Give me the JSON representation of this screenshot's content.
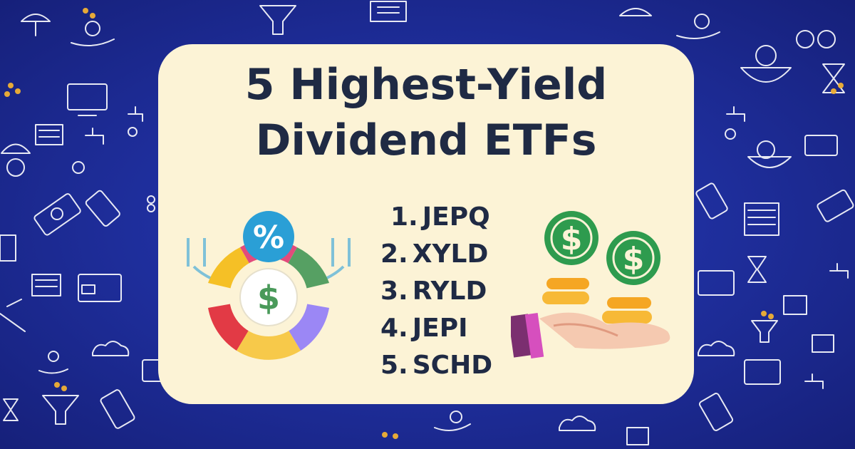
{
  "title": {
    "line1": "5 Highest-Yield",
    "line2": "Dividend ETFs"
  },
  "etf_list": [
    {
      "number": "1.",
      "ticker": "JEPQ"
    },
    {
      "number": "2.",
      "ticker": "XYLD"
    },
    {
      "number": "3.",
      "ticker": "RYLD"
    },
    {
      "number": "4.",
      "ticker": "JEPI"
    },
    {
      "number": "5.",
      "ticker": "SCHD"
    }
  ],
  "icons": {
    "percent_symbol": "%",
    "dollar_symbol": "$",
    "left_graphic": "percent-pie-dollar-icon",
    "right_graphic": "hand-with-coins-icon",
    "background_pattern": "finance-line-icons-pattern"
  },
  "colors": {
    "background": "#1f2f9e",
    "card": "#fcf3d6",
    "text": "#1f2a44",
    "coin_green": "#2e9b4e",
    "coin_gold": "#f5a623"
  }
}
